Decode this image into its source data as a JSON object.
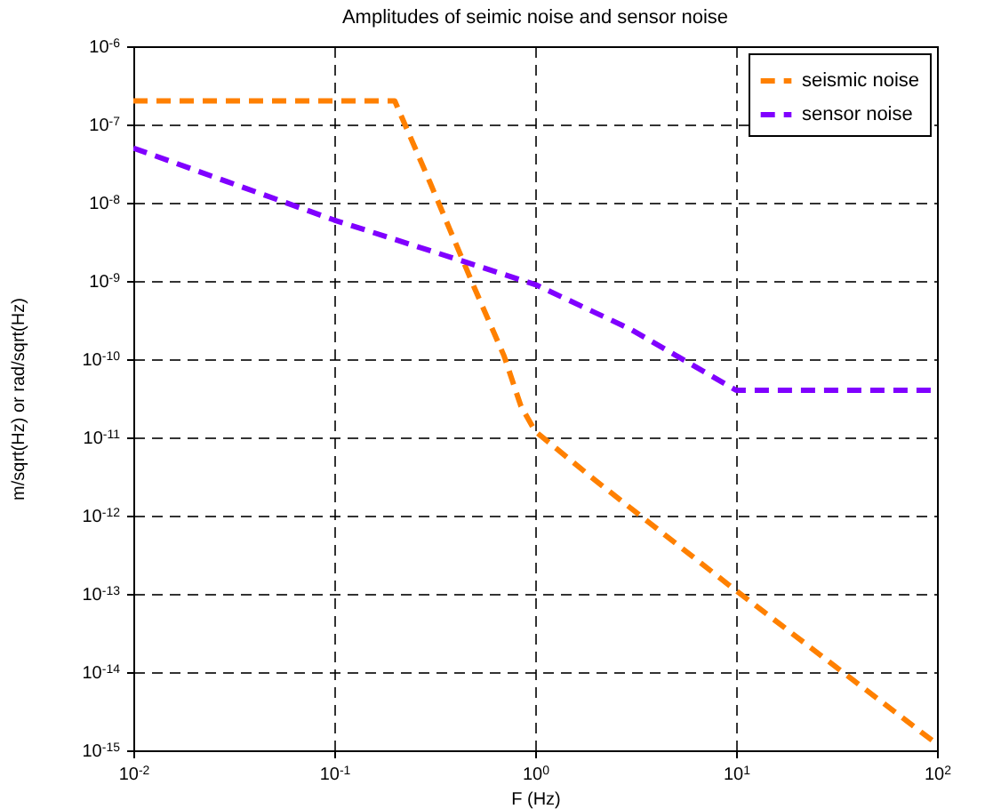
{
  "chart_data": {
    "type": "line",
    "title": "Amplitudes of seimic noise and sensor noise",
    "xlabel": "F (Hz)",
    "ylabel": "m/sqrt(Hz) or rad/sqrt(Hz)",
    "log": "xy",
    "grid": true,
    "legend": "top right",
    "line_style": "dashed",
    "marker": "none",
    "xlim": [
      0.01,
      100
    ],
    "xticks": [
      {
        "value": 0.01,
        "label": "10$^{-2}$"
      },
      {
        "value": 0.1,
        "label": "10$^{-1}$"
      },
      {
        "value": 1,
        "label": "10$^{0}$"
      },
      {
        "value": 10,
        "label": "10$^{1}$"
      },
      {
        "value": 100,
        "label": "10$^{2}$"
      }
    ],
    "ylim": [
      1e-15,
      1e-06
    ],
    "yticks": [
      {
        "value": 1e-15,
        "label": "10$^{-15}$"
      },
      {
        "value": 1e-14,
        "label": "10$^{-14}$"
      },
      {
        "value": 1e-13,
        "label": "10$^{-13}$"
      },
      {
        "value": 1e-12,
        "label": "10$^{-12}$"
      },
      {
        "value": 1e-11,
        "label": "10$^{-11}$"
      },
      {
        "value": 1e-10,
        "label": "10$^{-10}$"
      },
      {
        "value": 1e-09,
        "label": "10$^{-9}$"
      },
      {
        "value": 1e-08,
        "label": "10$^{-8}$"
      },
      {
        "value": 1e-07,
        "label": "10$^{-7}$"
      },
      {
        "value": 1e-06,
        "label": "10$^{-6}$"
      }
    ],
    "series": [
      {
        "name": "seismic noise",
        "color": "#ff8000",
        "x": [
          0.01,
          0.2,
          0.3,
          0.5,
          0.7,
          0.85,
          1,
          2,
          10,
          100
        ],
        "values": [
          2e-07,
          2e-07,
          1.8e-08,
          8e-10,
          1.1e-10,
          2.5e-11,
          1.2e-11,
          2.8e-12,
          1.1e-13,
          1.2e-15
        ]
      },
      {
        "name": "sensor noise",
        "color": "#8000ff",
        "x": [
          0.01,
          0.1,
          0.5,
          1,
          3,
          10,
          100
        ],
        "values": [
          5e-08,
          6e-09,
          1.6e-09,
          9e-10,
          2.4e-10,
          4e-11,
          4e-11
        ]
      }
    ]
  }
}
